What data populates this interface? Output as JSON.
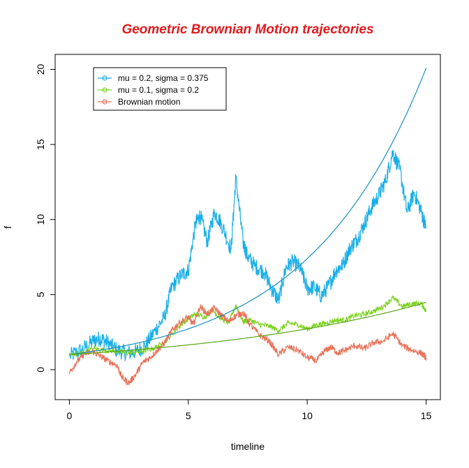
{
  "chart_data": {
    "type": "line",
    "title": "Geometric Brownian Motion trajectories",
    "xlabel": "timeline",
    "ylabel": "f",
    "xlim": [
      -0.6,
      15.6
    ],
    "ylim": [
      -2,
      21
    ],
    "x_ticks": [
      0,
      5,
      10,
      15
    ],
    "x_tick_labels": [
      "0",
      "5",
      "10",
      "15"
    ],
    "y_ticks": [
      0,
      5,
      10,
      15,
      20
    ],
    "y_tick_labels": [
      "0",
      "5",
      "10",
      "15",
      "20"
    ],
    "grid": false,
    "legend_position": "top-left",
    "legend": [
      {
        "label": "mu = 0.2,  sigma = 0.375",
        "color": "#1aaee8"
      },
      {
        "label": "mu = 0.1,  sigma = 0.2",
        "color": "#7ed321"
      },
      {
        "label": "Brownian motion",
        "color": "#e8735a"
      }
    ],
    "series": [
      {
        "name": "mu = 0.2,  sigma = 0.375",
        "color": "#1aaee8",
        "x": [
          0,
          0.5,
          1.0,
          1.3,
          1.6,
          2.0,
          2.4,
          2.8,
          3.2,
          3.6,
          4.0,
          4.3,
          4.7,
          5.0,
          5.3,
          5.5,
          5.8,
          6.1,
          6.4,
          6.8,
          7.0,
          7.3,
          7.5,
          7.8,
          8.2,
          8.5,
          8.8,
          9.1,
          9.4,
          9.7,
          10.0,
          10.3,
          10.6,
          10.9,
          11.2,
          11.5,
          11.8,
          12.1,
          12.4,
          12.7,
          13.0,
          13.3,
          13.6,
          13.9,
          14.2,
          14.5,
          14.8,
          15.0
        ],
        "y": [
          0.9,
          1.3,
          1.9,
          2.1,
          1.8,
          1.3,
          1.1,
          1.2,
          1.6,
          2.6,
          3.5,
          5.5,
          6.3,
          6.6,
          9.7,
          10.3,
          8.5,
          10.5,
          9.7,
          8.0,
          12.8,
          8.5,
          7.5,
          6.9,
          6.5,
          5.4,
          4.6,
          6.8,
          7.2,
          6.8,
          5.4,
          5.5,
          4.9,
          5.6,
          6.6,
          7.0,
          8.1,
          8.7,
          9.7,
          10.8,
          11.6,
          12.6,
          14.5,
          13.3,
          10.5,
          11.8,
          10.5,
          9.4
        ]
      },
      {
        "name": "mu = 0.1,  sigma = 0.2",
        "color": "#7ed321",
        "x": [
          0,
          0.5,
          1.0,
          1.5,
          2.0,
          2.5,
          3.0,
          3.5,
          4.0,
          4.5,
          5.0,
          5.3,
          5.7,
          6.0,
          6.3,
          6.7,
          7.0,
          7.3,
          7.6,
          8.0,
          8.4,
          8.8,
          9.2,
          9.6,
          10.0,
          10.4,
          10.8,
          11.2,
          11.6,
          12.0,
          12.4,
          12.8,
          13.2,
          13.6,
          14.0,
          14.4,
          14.8,
          15.0
        ],
        "y": [
          1.0,
          1.1,
          1.4,
          1.3,
          1.2,
          1.1,
          1.2,
          1.4,
          1.8,
          2.7,
          3.4,
          3.7,
          3.5,
          4.0,
          3.5,
          3.1,
          4.3,
          3.2,
          3.3,
          3.0,
          2.9,
          2.6,
          3.1,
          3.0,
          2.7,
          3.0,
          3.1,
          3.3,
          3.3,
          3.6,
          3.7,
          3.9,
          4.2,
          4.8,
          4.2,
          4.4,
          4.4,
          3.9
        ]
      },
      {
        "name": "Brownian motion",
        "color": "#e8735a",
        "x": [
          0,
          0.3,
          0.6,
          1.0,
          1.3,
          1.6,
          2.0,
          2.2,
          2.5,
          2.8,
          3.1,
          3.4,
          3.7,
          4.0,
          4.3,
          4.6,
          5.0,
          5.2,
          5.5,
          5.8,
          6.1,
          6.4,
          6.7,
          7.0,
          7.3,
          7.6,
          8.0,
          8.4,
          8.8,
          9.2,
          9.6,
          10.0,
          10.4,
          10.7,
          11.0,
          11.3,
          11.6,
          12.0,
          12.4,
          12.8,
          13.2,
          13.6,
          14.0,
          14.4,
          14.8,
          15.0
        ],
        "y": [
          -0.2,
          0.5,
          1.0,
          1.2,
          0.9,
          0.6,
          0.3,
          -0.5,
          -0.9,
          -0.3,
          0.5,
          0.8,
          1.3,
          1.8,
          2.6,
          3.1,
          3.5,
          3.0,
          4.2,
          3.7,
          4.1,
          3.6,
          3.2,
          3.6,
          3.8,
          3.0,
          2.3,
          1.9,
          1.0,
          1.5,
          1.3,
          0.8,
          0.6,
          1.2,
          1.5,
          1.1,
          1.3,
          1.6,
          1.4,
          1.8,
          1.9,
          2.4,
          1.6,
          1.3,
          1.1,
          0.8
        ]
      },
      {
        "name": "",
        "color": "#1a8fc2",
        "x": [
          0,
          1,
          2,
          3,
          4,
          5,
          6,
          7,
          8,
          9,
          10,
          11,
          12,
          13,
          14,
          15
        ],
        "y": [
          1.0,
          1.22,
          1.49,
          1.82,
          2.23,
          2.72,
          3.32,
          4.06,
          4.95,
          6.05,
          7.39,
          9.03,
          11.02,
          13.46,
          16.44,
          20.09
        ]
      },
      {
        "name": "",
        "color": "#5aa614",
        "x": [
          0,
          1,
          2,
          3,
          4,
          5,
          6,
          7,
          8,
          9,
          10,
          11,
          12,
          13,
          14,
          15
        ],
        "y": [
          1.0,
          1.11,
          1.22,
          1.35,
          1.49,
          1.65,
          1.82,
          2.01,
          2.23,
          2.46,
          2.72,
          3.0,
          3.32,
          3.67,
          4.06,
          4.48
        ]
      }
    ]
  }
}
